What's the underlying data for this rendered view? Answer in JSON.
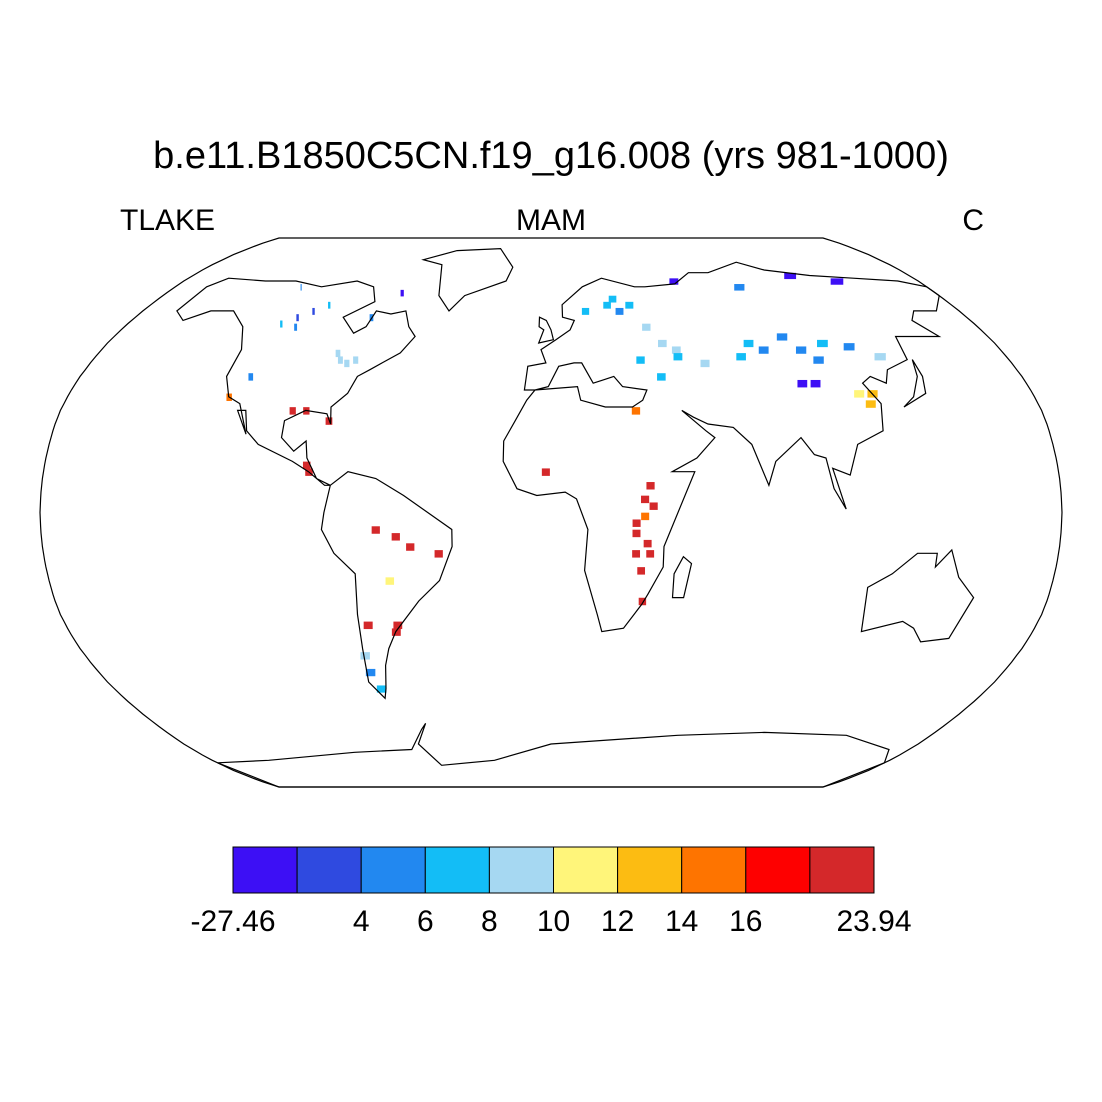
{
  "title": "b.e11.B1850C5CN.f19_g16.008 (yrs 981-1000)",
  "left_string": "TLAKE",
  "center_string": "MAM",
  "right_string": "C",
  "colorbar": {
    "levels": [
      -27.46,
      null,
      4,
      6,
      8,
      10,
      12,
      14,
      16,
      null,
      23.94
    ],
    "colors": [
      "#3d0ff5",
      "#2f4ae0",
      "#2288f0",
      "#13bdf6",
      "#a6d8f2",
      "#fff57a",
      "#fcbc12",
      "#fe7400",
      "#fe0000",
      "#d4282a"
    ]
  },
  "cells": [
    {
      "lon": -110,
      "lat": 58,
      "value": 3
    },
    {
      "lon": -105,
      "lat": 60,
      "value": 3
    },
    {
      "lon": -100,
      "lat": 62,
      "value": 7
    },
    {
      "lon": -115,
      "lat": 56,
      "value": 7
    },
    {
      "lon": -108,
      "lat": 55,
      "value": 5
    },
    {
      "lon": -70,
      "lat": 66,
      "value": -5
    },
    {
      "lon": -78,
      "lat": 58,
      "value": 5
    },
    {
      "lon": -120,
      "lat": 68,
      "value": 5
    },
    {
      "lon": -83,
      "lat": 45,
      "value": 9
    },
    {
      "lon": -85,
      "lat": 47,
      "value": 9
    },
    {
      "lon": -80,
      "lat": 44,
      "value": 9
    },
    {
      "lon": -77,
      "lat": 45,
      "value": 9
    },
    {
      "lon": -81,
      "lat": 27,
      "value": 17
    },
    {
      "lon": -95,
      "lat": 30,
      "value": 20
    },
    {
      "lon": -90,
      "lat": 30,
      "value": 20
    },
    {
      "lon": -87,
      "lat": 14,
      "value": 20
    },
    {
      "lon": -86,
      "lat": 12,
      "value": 17
    },
    {
      "lon": -120,
      "lat": 34,
      "value": 15
    },
    {
      "lon": -115,
      "lat": 40,
      "value": 5
    },
    {
      "lon": -62,
      "lat": -5,
      "value": 20
    },
    {
      "lon": -55,
      "lat": -7,
      "value": 20
    },
    {
      "lon": -50,
      "lat": -10,
      "value": 20
    },
    {
      "lon": -40,
      "lat": -12,
      "value": 20
    },
    {
      "lon": -58,
      "lat": -20,
      "value": 11
    },
    {
      "lon": -68,
      "lat": -33,
      "value": 17
    },
    {
      "lon": -58,
      "lat": -35,
      "value": 17
    },
    {
      "lon": -57,
      "lat": -33,
      "value": 20
    },
    {
      "lon": -72,
      "lat": -42,
      "value": 9
    },
    {
      "lon": -72,
      "lat": -47,
      "value": 5
    },
    {
      "lon": -70,
      "lat": -52,
      "value": 6
    },
    {
      "lon": 30,
      "lat": -3,
      "value": 17
    },
    {
      "lon": 30,
      "lat": -6,
      "value": 17
    },
    {
      "lon": 34,
      "lat": -9,
      "value": 17
    },
    {
      "lon": 35,
      "lat": -12,
      "value": 17
    },
    {
      "lon": 30,
      "lat": -12,
      "value": 20
    },
    {
      "lon": 33,
      "lat": 4,
      "value": 20
    },
    {
      "lon": 36,
      "lat": 2,
      "value": 20
    },
    {
      "lon": 35,
      "lat": 8,
      "value": 20
    },
    {
      "lon": 32,
      "lat": -17,
      "value": 20
    },
    {
      "lon": 33,
      "lat": -26,
      "value": 20
    },
    {
      "lon": -2,
      "lat": 12,
      "value": 20
    },
    {
      "lon": 31,
      "lat": 30,
      "value": 15
    },
    {
      "lon": 33,
      "lat": -1,
      "value": 15
    },
    {
      "lon": 25,
      "lat": 62,
      "value": 6
    },
    {
      "lon": 28,
      "lat": 64,
      "value": 7
    },
    {
      "lon": 30,
      "lat": 60,
      "value": 5
    },
    {
      "lon": 35,
      "lat": 62,
      "value": 7
    },
    {
      "lon": 15,
      "lat": 60,
      "value": 7
    },
    {
      "lon": 40,
      "lat": 55,
      "value": 9
    },
    {
      "lon": 50,
      "lat": 48,
      "value": 9
    },
    {
      "lon": 45,
      "lat": 50,
      "value": 9
    },
    {
      "lon": 35,
      "lat": 45,
      "value": 7
    },
    {
      "lon": 42,
      "lat": 40,
      "value": 7
    },
    {
      "lon": 50,
      "lat": 46,
      "value": 6
    },
    {
      "lon": 60,
      "lat": 44,
      "value": 9
    },
    {
      "lon": 75,
      "lat": 46,
      "value": 7
    },
    {
      "lon": 80,
      "lat": 50,
      "value": 6
    },
    {
      "lon": 85,
      "lat": 48,
      "value": 5
    },
    {
      "lon": 95,
      "lat": 52,
      "value": 5
    },
    {
      "lon": 100,
      "lat": 48,
      "value": 4
    },
    {
      "lon": 105,
      "lat": 45,
      "value": 5
    },
    {
      "lon": 110,
      "lat": 50,
      "value": 7
    },
    {
      "lon": 120,
      "lat": 49,
      "value": 5
    },
    {
      "lon": 95,
      "lat": 38,
      "value": -5
    },
    {
      "lon": 100,
      "lat": 38,
      "value": -5
    },
    {
      "lon": 118,
      "lat": 32,
      "value": 13
    },
    {
      "lon": 115,
      "lat": 35,
      "value": 11
    },
    {
      "lon": 120,
      "lat": 35,
      "value": 13
    },
    {
      "lon": 130,
      "lat": 46,
      "value": 9
    },
    {
      "lon": 60,
      "lat": 70,
      "value": -5
    },
    {
      "lon": 120,
      "lat": 72,
      "value": -5
    },
    {
      "lon": 140,
      "lat": 70,
      "value": -5
    },
    {
      "lon": 90,
      "lat": 68,
      "value": 5
    }
  ]
}
